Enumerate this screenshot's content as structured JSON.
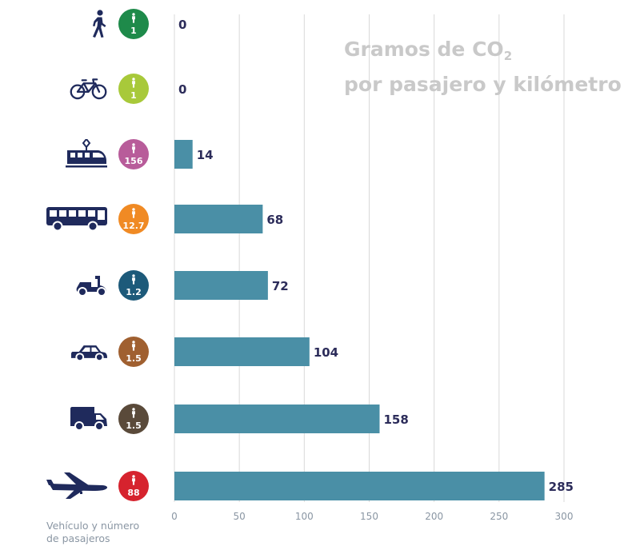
{
  "title": {
    "line1_prefix": "Gramos de CO",
    "line1_sub": "2",
    "line2": "por pasajero y kilómetro"
  },
  "footnote": {
    "line1": "Vehículo y número",
    "line2": "de pasajeros"
  },
  "chart_data": {
    "type": "bar",
    "orientation": "horizontal",
    "categories": [
      "walk",
      "bicycle",
      "train",
      "bus",
      "scooter",
      "car",
      "van",
      "plane"
    ],
    "passengers": [
      "1",
      "1",
      "156",
      "12.7",
      "1.2",
      "1.5",
      "1.5",
      "88"
    ],
    "values": [
      0,
      0,
      14,
      68,
      72,
      104,
      158,
      285
    ],
    "value_labels": [
      "0",
      "0",
      "14",
      "68",
      "72",
      "104",
      "158",
      "285"
    ],
    "xlim": [
      0,
      300
    ],
    "xticks": [
      "0",
      "50",
      "100",
      "150",
      "200",
      "250",
      "300"
    ],
    "grid": true,
    "bar_color": "#4a8fa6",
    "label_color": "#2c2c5a",
    "icon_color": "#1f2a5c",
    "grid_color": "#d9d9d9",
    "icons": [
      "walking-person-icon",
      "bicycle-icon",
      "train-icon",
      "bus-icon",
      "scooter-icon",
      "car-icon",
      "van-icon",
      "airplane-icon"
    ],
    "badge_colors": [
      "#1e8a4a",
      "#a8c93a",
      "#b85c9a",
      "#f08a24",
      "#1d5a7a",
      "#a06030",
      "#5a4a3a",
      "#d6232e"
    ]
  }
}
